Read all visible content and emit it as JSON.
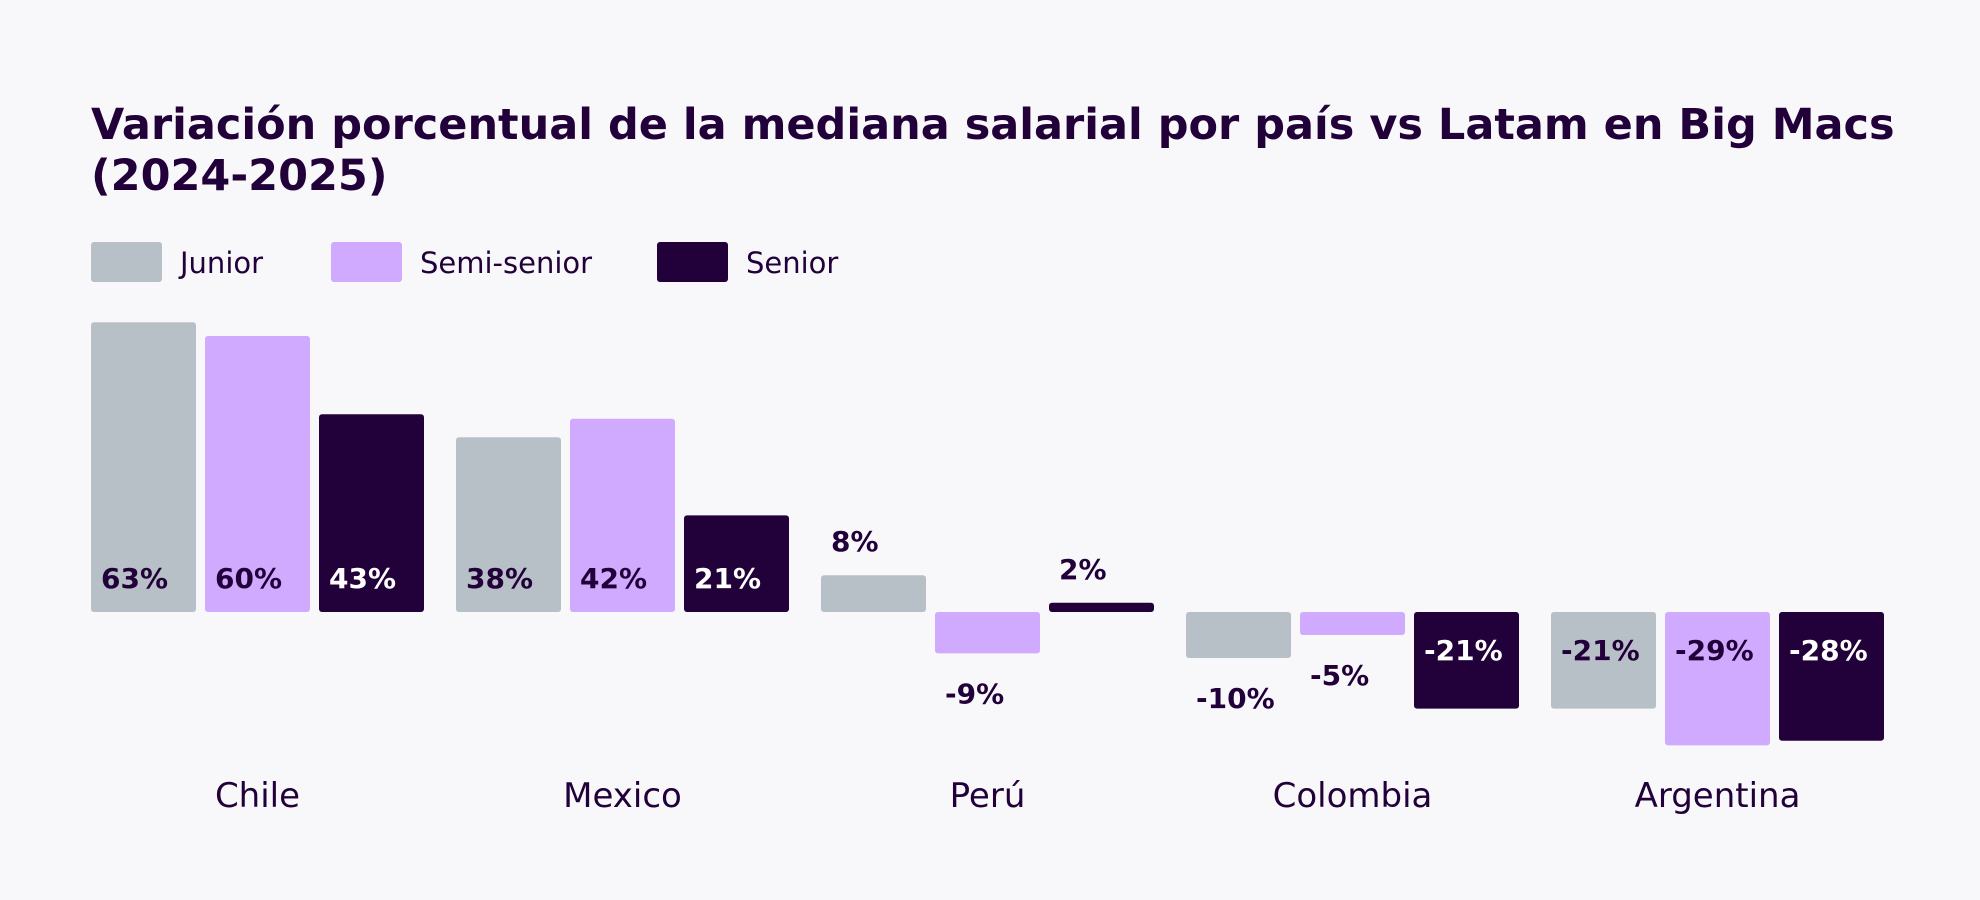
{
  "chart_data": {
    "type": "bar",
    "title": "Variación porcentual de la mediana salarial por país vs Latam en Big Macs",
    "title_line2": "(2024-2025)",
    "categories": [
      "Chile",
      "Mexico",
      "Perú",
      "Colombia",
      "Argentina"
    ],
    "series": [
      {
        "name": "Junior",
        "color": "#b8c0c7",
        "values": [
          63,
          38,
          8,
          -10,
          -21
        ]
      },
      {
        "name": "Semi-senior",
        "color": "#d0aaff",
        "values": [
          60,
          42,
          -9,
          -5,
          -29
        ]
      },
      {
        "name": "Senior",
        "color": "#22003a",
        "values": [
          43,
          21,
          2,
          -21,
          -28
        ]
      }
    ],
    "value_suffix": "%",
    "legend_position": "top-left",
    "grid": false,
    "axes_visible": false,
    "background": "#f8f8fa",
    "text_color": "#22003a"
  }
}
